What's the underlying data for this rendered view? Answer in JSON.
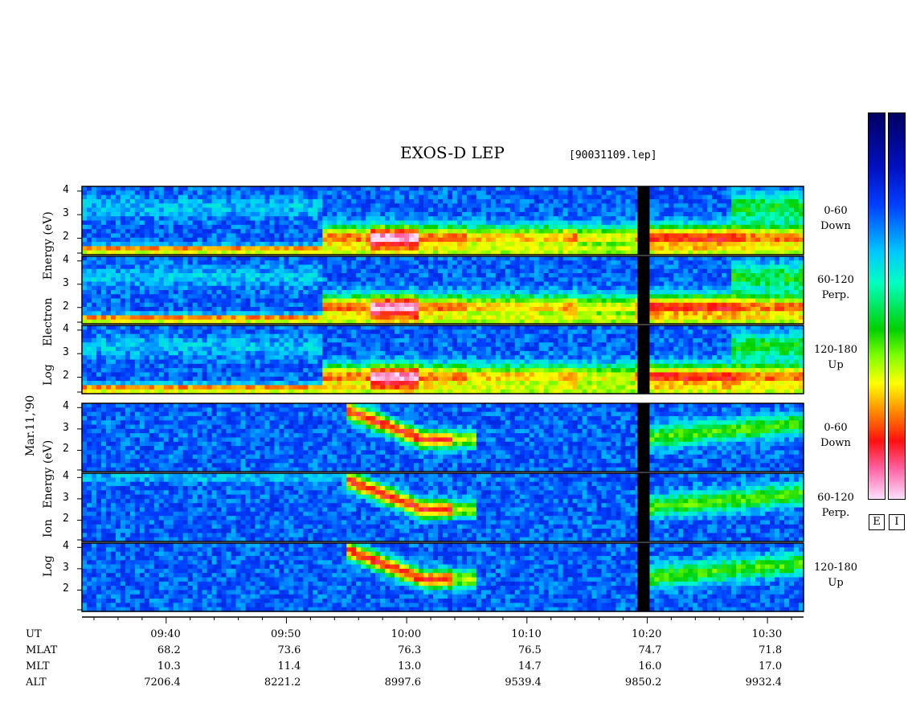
{
  "chart_data": {
    "type": "heatmap",
    "title": "EXOS-D LEP",
    "file_id": "[90031109.lep]",
    "date_label": "Mar.11,'90",
    "x_axis": {
      "quantity": "UT",
      "range": [
        "09:33",
        "10:33"
      ],
      "tick_labels": [
        "09:40",
        "09:50",
        "10:00",
        "10:10",
        "10:20",
        "10:30"
      ],
      "minor_tick_interval_min": 2
    },
    "data_gap": {
      "start": "10:19",
      "end": "10:20"
    },
    "groups": [
      {
        "species": "Electron",
        "ylabel_parts": [
          "Log",
          "Electron",
          "Energy",
          "(eV)"
        ],
        "ylim": [
          1.3,
          4.2
        ],
        "yticks": [
          "2",
          "3",
          "4"
        ],
        "panels": [
          {
            "pitch_angle": "0-60",
            "direction": "Down"
          },
          {
            "pitch_angle": "60-120",
            "direction": "Perp."
          },
          {
            "pitch_angle": "120-180",
            "direction": "Up"
          }
        ]
      },
      {
        "species": "Ion",
        "ylabel_parts": [
          "Log",
          "Ion",
          "Energy",
          "(eV)"
        ],
        "ylim": [
          1.0,
          4.2
        ],
        "yticks": [
          "2",
          "3",
          "4"
        ],
        "panels": [
          {
            "pitch_angle": "0-60",
            "direction": "Down"
          },
          {
            "pitch_angle": "60-120",
            "direction": "Perp."
          },
          {
            "pitch_angle": "120-180",
            "direction": "Up"
          }
        ]
      }
    ],
    "ephemeris": {
      "rows": [
        {
          "label": "UT",
          "values": [
            "09:40",
            "09:50",
            "10:00",
            "10:10",
            "10:20",
            "10:30"
          ]
        },
        {
          "label": "MLAT",
          "values": [
            "68.2",
            "73.6",
            "76.3",
            "76.5",
            "74.7",
            "71.8"
          ]
        },
        {
          "label": "MLT",
          "values": [
            "10.3",
            "11.4",
            "13.0",
            "14.7",
            "16.0",
            "17.0"
          ]
        },
        {
          "label": "ALT",
          "values": [
            "7206.4",
            "8221.2",
            "8997.6",
            "9539.4",
            "9850.2",
            "9932.4"
          ]
        }
      ]
    },
    "colorbars": [
      {
        "label": "E"
      },
      {
        "label": "I"
      }
    ],
    "colorscale": [
      "#000060",
      "#0010c0",
      "#0040ff",
      "#00c8ff",
      "#00ffc0",
      "#00d000",
      "#80ff00",
      "#ffff00",
      "#ff8000",
      "#ff1010",
      "#ff60a0",
      "#ffe0ff"
    ]
  }
}
